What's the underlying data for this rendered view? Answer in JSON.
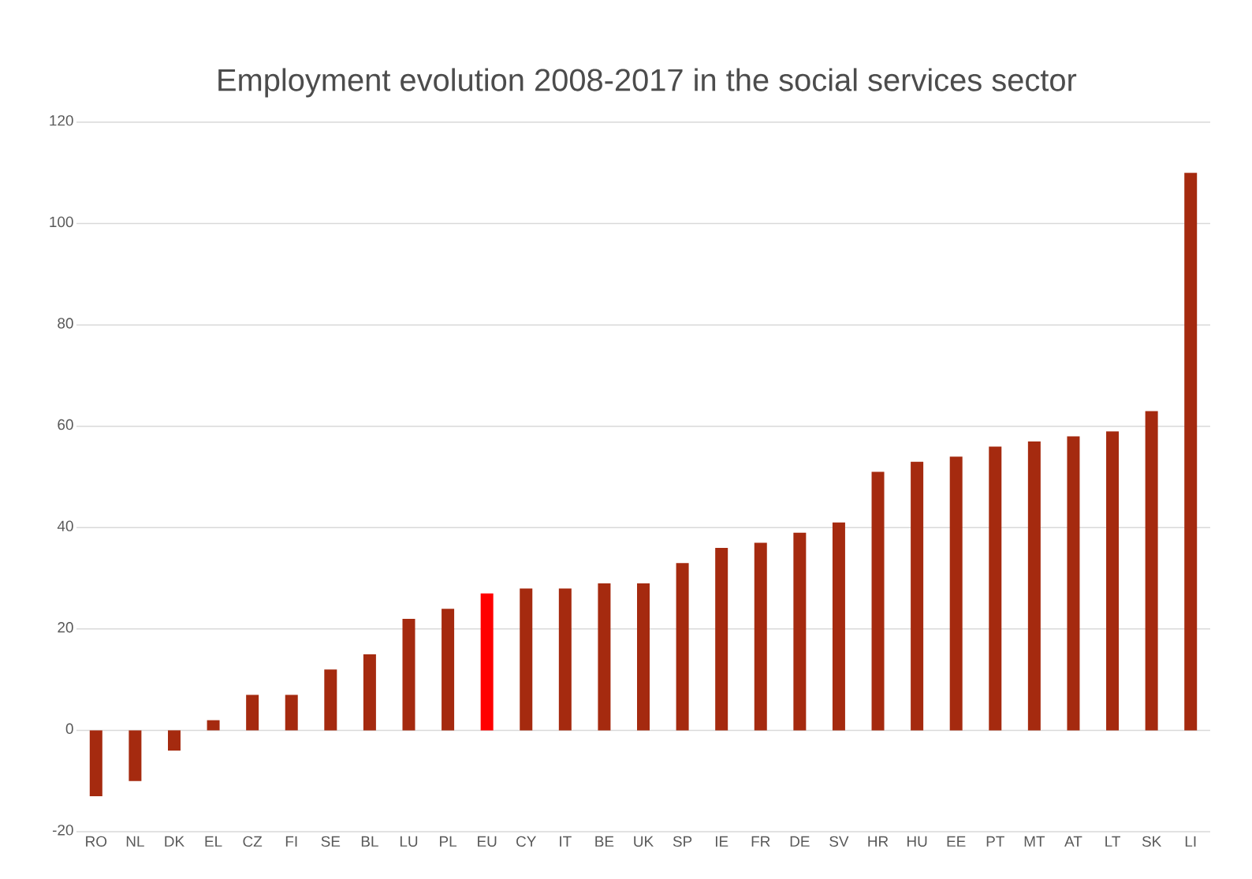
{
  "chart_data": {
    "type": "bar",
    "title": "Employment evolution 2008-2017 in the social services sector",
    "categories": [
      "RO",
      "NL",
      "DK",
      "EL",
      "CZ",
      "FI",
      "SE",
      "BL",
      "LU",
      "PL",
      "EU",
      "CY",
      "IT",
      "BE",
      "UK",
      "SP",
      "IE",
      "FR",
      "DE",
      "SV",
      "HR",
      "HU",
      "EE",
      "PT",
      "MT",
      "AT",
      "LT",
      "SK",
      "LI"
    ],
    "values": [
      -13,
      -10,
      -4,
      2,
      7,
      7,
      12,
      15,
      22,
      24,
      27,
      28,
      28,
      29,
      29,
      33,
      36,
      37,
      39,
      41,
      51,
      53,
      54,
      56,
      57,
      58,
      59,
      63,
      110
    ],
    "colors": [
      "#a52a0f",
      "#a52a0f",
      "#a52a0f",
      "#a52a0f",
      "#a52a0f",
      "#a52a0f",
      "#a52a0f",
      "#a52a0f",
      "#a52a0f",
      "#a52a0f",
      "#ff0000",
      "#a52a0f",
      "#a52a0f",
      "#a52a0f",
      "#a52a0f",
      "#a52a0f",
      "#a52a0f",
      "#a52a0f",
      "#a52a0f",
      "#a52a0f",
      "#a52a0f",
      "#a52a0f",
      "#a52a0f",
      "#a52a0f",
      "#a52a0f",
      "#a52a0f",
      "#a52a0f",
      "#a52a0f",
      "#a52a0f"
    ],
    "ylim": [
      -20,
      120
    ],
    "yticks": [
      -20,
      0,
      20,
      40,
      60,
      80,
      100,
      120
    ],
    "grid": "y"
  }
}
